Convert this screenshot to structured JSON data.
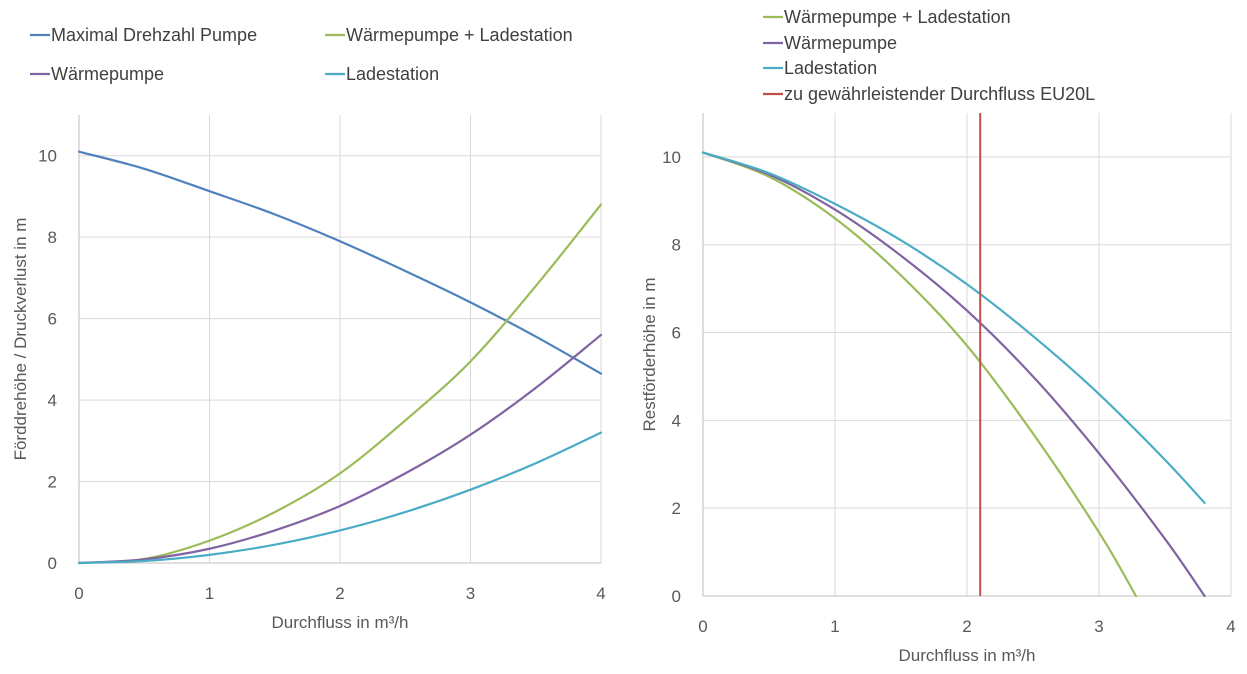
{
  "chart_data": [
    {
      "type": "line",
      "title": "",
      "xlabel": "Durchfluss in m³/h",
      "ylabel": "Förddrehöhe / Druckverlust in m",
      "xlim": [
        0,
        4
      ],
      "ylim": [
        0,
        11
      ],
      "xticks": [
        0,
        1,
        2,
        3,
        4
      ],
      "yticks": [
        0,
        2,
        4,
        6,
        8,
        10
      ],
      "grid": true,
      "legend_position": "top",
      "series": [
        {
          "name": "Maximal Drehzahl Pumpe",
          "color": "#4f81bd",
          "points": [
            [
              0,
              10.1
            ],
            [
              0.5,
              9.68
            ],
            [
              1,
              9.13
            ],
            [
              1.5,
              8.56
            ],
            [
              2,
              7.9
            ],
            [
              2.5,
              7.17
            ],
            [
              3,
              6.4
            ],
            [
              3.5,
              5.56
            ],
            [
              4,
              4.65
            ]
          ]
        },
        {
          "name": "Wärmepumpe + Ladestation",
          "color": "#9bbb59",
          "points": [
            [
              0,
              0
            ],
            [
              0.5,
              0.1
            ],
            [
              1,
              0.55
            ],
            [
              1.5,
              1.25
            ],
            [
              2,
              2.2
            ],
            [
              2.5,
              3.5
            ],
            [
              3,
              4.95
            ],
            [
              3.5,
              6.8
            ],
            [
              4,
              8.8
            ]
          ]
        },
        {
          "name": "Wärmepumpe",
          "color": "#8064a2",
          "points": [
            [
              0,
              0
            ],
            [
              0.5,
              0.09
            ],
            [
              1,
              0.35
            ],
            [
              1.5,
              0.8
            ],
            [
              2,
              1.4
            ],
            [
              2.5,
              2.2
            ],
            [
              3,
              3.15
            ],
            [
              3.5,
              4.3
            ],
            [
              4,
              5.6
            ]
          ]
        },
        {
          "name": "Ladestation",
          "color": "#4bacc6",
          "points": [
            [
              0,
              0
            ],
            [
              0.5,
              0.05
            ],
            [
              1,
              0.2
            ],
            [
              1.5,
              0.45
            ],
            [
              2,
              0.8
            ],
            [
              2.5,
              1.25
            ],
            [
              3,
              1.8
            ],
            [
              3.5,
              2.45
            ],
            [
              4,
              3.2
            ]
          ]
        }
      ]
    },
    {
      "type": "line",
      "title": "",
      "xlabel": "Durchfluss in m³/h",
      "ylabel": "Restförderhöhe in m",
      "xlim": [
        0,
        4
      ],
      "ylim": [
        0,
        11
      ],
      "xticks": [
        0,
        1,
        2,
        3,
        4
      ],
      "yticks": [
        0,
        2,
        4,
        6,
        8,
        10
      ],
      "grid": true,
      "legend_position": "top",
      "series": [
        {
          "name": "Wärmepumpe + Ladestation",
          "color": "#9bbb59",
          "points": [
            [
              0,
              10.1
            ],
            [
              0.5,
              9.55
            ],
            [
              1,
              8.6
            ],
            [
              1.5,
              7.3
            ],
            [
              2,
              5.7
            ],
            [
              2.5,
              3.7
            ],
            [
              3,
              1.45
            ],
            [
              3.28,
              0
            ]
          ]
        },
        {
          "name": "Wärmepumpe",
          "color": "#8064a2",
          "points": [
            [
              0,
              10.1
            ],
            [
              0.5,
              9.6
            ],
            [
              1,
              8.8
            ],
            [
              1.5,
              7.75
            ],
            [
              2,
              6.5
            ],
            [
              2.5,
              5.0
            ],
            [
              3,
              3.25
            ],
            [
              3.5,
              1.3
            ],
            [
              3.8,
              0
            ]
          ]
        },
        {
          "name": "Ladestation",
          "color": "#4bacc6",
          "points": [
            [
              0,
              10.1
            ],
            [
              0.5,
              9.63
            ],
            [
              1,
              8.93
            ],
            [
              1.5,
              8.1
            ],
            [
              2,
              7.1
            ],
            [
              2.5,
              5.92
            ],
            [
              3,
              4.6
            ],
            [
              3.5,
              3.1
            ],
            [
              3.8,
              2.12
            ]
          ]
        },
        {
          "name": "zu gewährleistender Durchfluss EU20L",
          "color": "#c0504d",
          "type": "vline",
          "x": 2.1
        }
      ]
    }
  ]
}
